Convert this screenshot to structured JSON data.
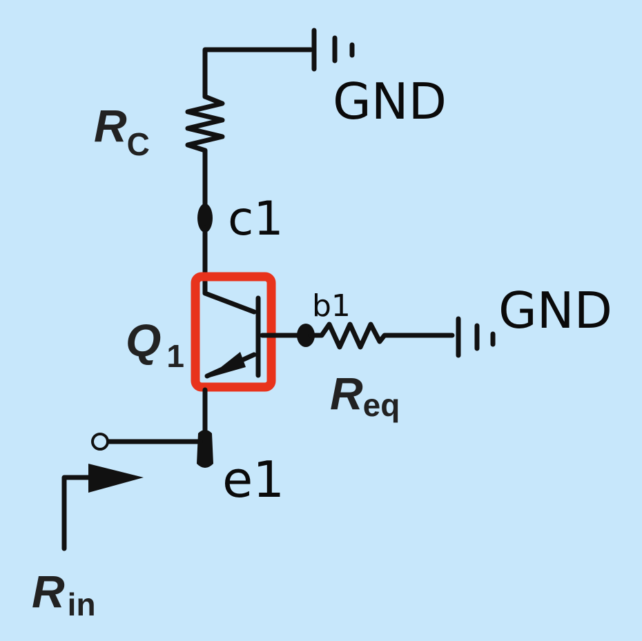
{
  "background_color": "#c7e7fb",
  "highlight_color": "#e8331c",
  "wire_color": "#111111",
  "components": {
    "rc": {
      "main": "R",
      "sub": "C"
    },
    "req": {
      "main": "R",
      "sub": "eq"
    },
    "rin": {
      "main": "R",
      "sub": "in"
    },
    "q1": {
      "main": "Q",
      "sub": "1"
    }
  },
  "handwritten": {
    "gnd_top": "GND",
    "gnd_right": "GND",
    "collector_node": "c1",
    "base_node": "b1",
    "emitter_node": "e1"
  },
  "icons": {
    "ground_top": "ground-icon",
    "ground_right": "ground-icon",
    "transistor": "npn-transistor-icon",
    "input_arrow": "arrow-right-icon"
  }
}
